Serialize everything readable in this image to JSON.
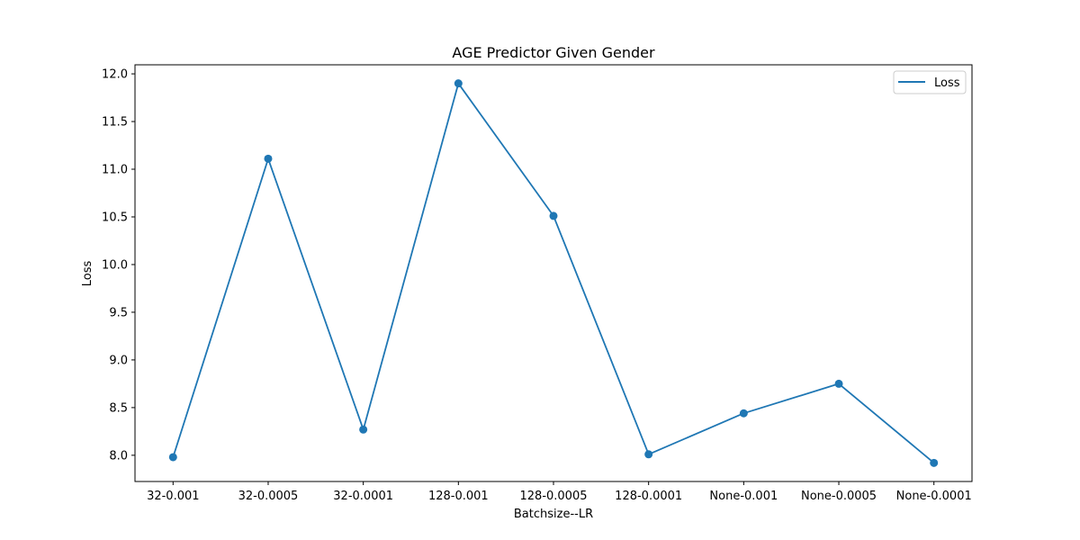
{
  "chart_data": {
    "type": "line",
    "title": "AGE Predictor Given Gender",
    "xlabel": "Batchsize--LR",
    "ylabel": "Loss",
    "categories": [
      "32-0.001",
      "32-0.0005",
      "32-0.0001",
      "128-0.001",
      "128-0.0005",
      "128-0.0001",
      "None-0.001",
      "None-0.0005",
      "None-0.0001"
    ],
    "series": [
      {
        "name": "Loss",
        "color": "#1f77b4",
        "marker": "circle",
        "values": [
          7.98,
          11.11,
          8.27,
          11.9,
          10.51,
          8.01,
          8.44,
          8.75,
          7.92
        ]
      }
    ],
    "yticks": [
      "8.0",
      "8.5",
      "9.0",
      "9.5",
      "10.0",
      "10.5",
      "11.0",
      "11.5",
      "12.0"
    ],
    "ylim": [
      7.725,
      12.095
    ],
    "grid": false,
    "legend": "top-right"
  }
}
